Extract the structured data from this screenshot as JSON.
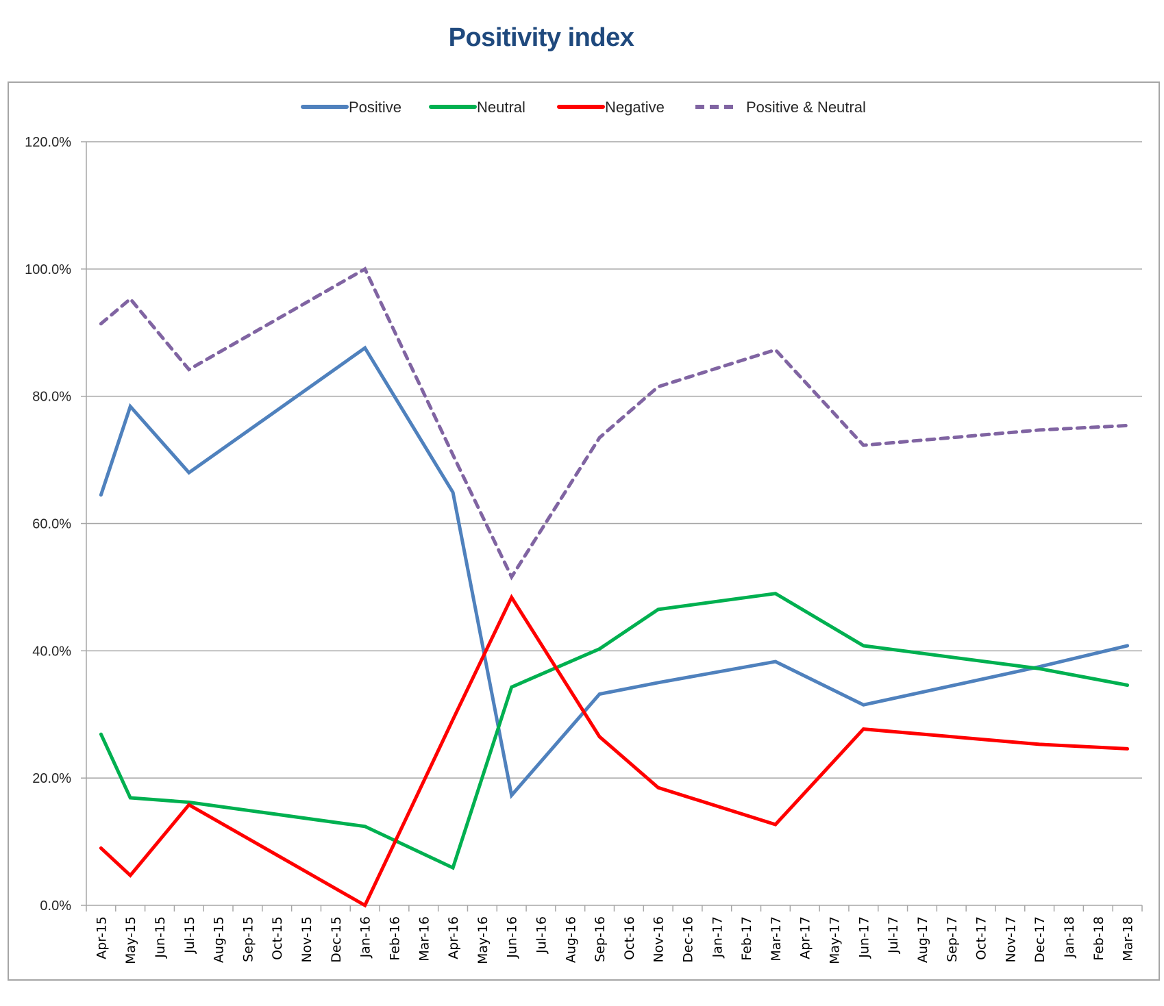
{
  "chart_data": {
    "type": "line",
    "title": "Positivity index",
    "xlabel": "",
    "ylabel": "",
    "ylim": [
      0,
      120
    ],
    "yticks": [
      0,
      20,
      40,
      60,
      80,
      100,
      120
    ],
    "ytick_labels": [
      "0.0%",
      "20.0%",
      "40.0%",
      "60.0%",
      "80.0%",
      "100.0%",
      "120.0%"
    ],
    "grid": "horizontal",
    "legend_position": "top",
    "categories": [
      "Apr-15",
      "May-15",
      "Jun-15",
      "Jul-15",
      "Aug-15",
      "Sep-15",
      "Oct-15",
      "Nov-15",
      "Dec-15",
      "Jan-16",
      "Feb-16",
      "Mar-16",
      "Apr-16",
      "May-16",
      "Jun-16",
      "Jul-16",
      "Aug-16",
      "Sep-16",
      "Oct-16",
      "Nov-16",
      "Dec-16",
      "Jan-17",
      "Feb-17",
      "Mar-17",
      "Apr-17",
      "May-17",
      "Jun-17",
      "Jul-17",
      "Aug-17",
      "Sep-17",
      "Oct-17",
      "Nov-17",
      "Dec-17",
      "Jan-18",
      "Feb-18",
      "Mar-18"
    ],
    "connect_gaps": true,
    "series": [
      {
        "name": "Positive",
        "color": "#4F81BD",
        "dash": "solid",
        "values": [
          64.5,
          78.4,
          null,
          68.0,
          null,
          null,
          null,
          null,
          null,
          87.6,
          null,
          null,
          64.9,
          null,
          17.3,
          null,
          null,
          33.2,
          null,
          35.0,
          null,
          null,
          null,
          38.3,
          null,
          null,
          31.5,
          null,
          null,
          null,
          null,
          null,
          37.5,
          null,
          null,
          40.8
        ]
      },
      {
        "name": "Neutral",
        "color": "#00B050",
        "dash": "solid",
        "values": [
          26.9,
          16.9,
          null,
          16.2,
          null,
          null,
          null,
          null,
          null,
          12.4,
          null,
          null,
          5.9,
          null,
          34.3,
          null,
          null,
          40.3,
          null,
          46.5,
          null,
          null,
          null,
          49.0,
          null,
          null,
          40.8,
          null,
          null,
          null,
          null,
          null,
          37.2,
          null,
          null,
          34.6
        ]
      },
      {
        "name": "Negative",
        "color": "#FF0000",
        "dash": "solid",
        "values": [
          9.0,
          4.7,
          null,
          15.8,
          null,
          null,
          null,
          null,
          null,
          0.0,
          null,
          null,
          29.2,
          null,
          48.4,
          null,
          null,
          26.5,
          null,
          18.5,
          null,
          null,
          null,
          12.7,
          null,
          null,
          27.7,
          null,
          null,
          null,
          null,
          null,
          25.3,
          null,
          null,
          24.6
        ]
      },
      {
        "name": "Positive & Neutral",
        "color": "#8064A2",
        "dash": "dashed",
        "values": [
          91.4,
          95.3,
          null,
          84.2,
          null,
          null,
          null,
          null,
          null,
          100.0,
          null,
          null,
          70.8,
          null,
          51.6,
          null,
          null,
          73.5,
          null,
          81.5,
          null,
          null,
          null,
          87.3,
          null,
          null,
          72.3,
          null,
          null,
          null,
          null,
          null,
          74.7,
          null,
          null,
          75.4
        ]
      }
    ]
  },
  "colors": {
    "title": "#1F497D",
    "gridline": "#a6a6a6",
    "axis": "#a6a6a6"
  }
}
